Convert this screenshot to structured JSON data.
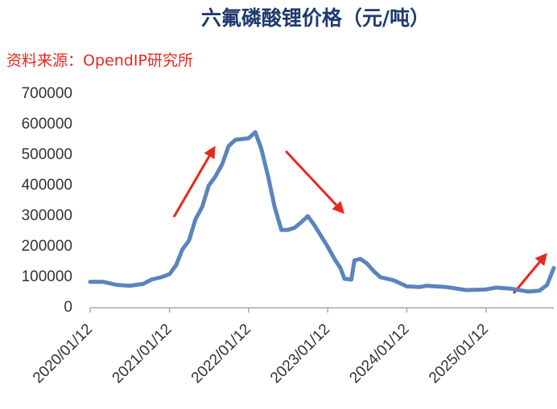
{
  "chart_data": {
    "type": "line",
    "title": "六氟磷酸锂价格（元/吨）",
    "source": "资料来源：OpendIP研究所",
    "x": [
      "2020/01/12",
      "2020/03/12",
      "2020/05/12",
      "2020/07/12",
      "2020/09/12",
      "2020/10/20",
      "2020/12/05",
      "2021/01/12",
      "2021/02/12",
      "2021/03/12",
      "2021/04/12",
      "2021/05/12",
      "2021/06/12",
      "2021/07/12",
      "2021/08/12",
      "2021/09/12",
      "2021/10/12",
      "2021/11/12",
      "2022/01/12",
      "2022/02/12",
      "2022/03/12",
      "2022/04/12",
      "2022/05/12",
      "2022/06/12",
      "2022/07/12",
      "2022/08/12",
      "2022/09/12",
      "2022/10/12",
      "2022/11/12",
      "2023/01/12",
      "2023/02/12",
      "2023/03/12",
      "2023/03/30",
      "2023/05/01",
      "2023/05/15",
      "2023/06/12",
      "2023/07/12",
      "2023/08/12",
      "2023/09/12",
      "2023/11/12",
      "2024/01/12",
      "2024/03/12",
      "2024/04/12",
      "2024/07/12",
      "2024/10/12",
      "2025/01/12",
      "2025/02/25",
      "2025/05/12",
      "2025/07/25",
      "2025/09/15",
      "2025/10/20",
      "2025/11/20"
    ],
    "series": [
      {
        "name": "六氟磷酸锂价格",
        "color": "#5b84bd",
        "values": [
          85000,
          85000,
          75000,
          72000,
          78000,
          92000,
          100000,
          110000,
          140000,
          190000,
          220000,
          290000,
          330000,
          400000,
          430000,
          470000,
          530000,
          550000,
          555000,
          575000,
          520000,
          430000,
          330000,
          255000,
          255000,
          262000,
          280000,
          300000,
          270000,
          200000,
          160000,
          130000,
          95000,
          92000,
          155000,
          160000,
          145000,
          120000,
          100000,
          90000,
          70000,
          68000,
          72000,
          68000,
          58000,
          60000,
          66000,
          62000,
          53000,
          56000,
          75000,
          130000
        ]
      }
    ],
    "xlim": [
      "2020/01/12",
      "2025/11/20"
    ],
    "xticks": [
      "2020/01/12",
      "2021/01/12",
      "2022/01/12",
      "2023/01/12",
      "2024/01/12",
      "2025/01/12"
    ],
    "ylim": [
      0,
      700000
    ],
    "yticks": [
      0,
      100000,
      200000,
      300000,
      400000,
      500000,
      600000,
      700000
    ],
    "grid": false
  }
}
